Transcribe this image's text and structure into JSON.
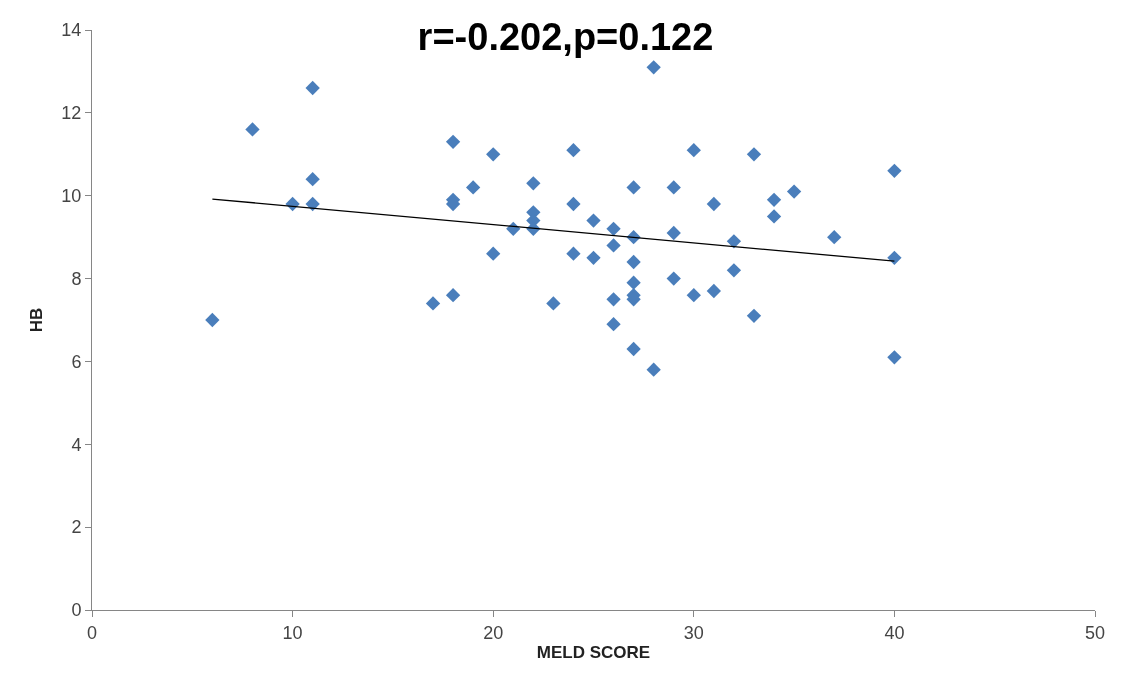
{
  "chart_data": {
    "type": "scatter",
    "title": "r=-0.202,p=0.122",
    "xlabel": "MELD SCORE",
    "ylabel": "HB",
    "marker": "diamond",
    "grid": false,
    "xlim": [
      0,
      50
    ],
    "xticks": [
      0,
      10,
      20,
      30,
      40,
      50
    ],
    "ylim": [
      0,
      14
    ],
    "yticks": [
      0,
      2,
      4,
      6,
      8,
      10,
      12,
      14
    ],
    "series": [
      {
        "color": "#4a7ebb",
        "x": [
          6,
          8,
          10,
          11,
          11,
          11,
          17,
          18,
          18,
          18,
          18,
          19,
          20,
          20,
          21,
          22,
          22,
          22,
          22,
          23,
          24,
          24,
          24,
          25,
          25,
          26,
          26,
          26,
          26,
          27,
          27,
          27,
          27,
          27,
          27,
          27,
          28,
          28,
          29,
          29,
          29,
          30,
          30,
          31,
          31,
          32,
          32,
          33,
          33,
          34,
          34,
          35,
          37,
          40,
          40,
          40
        ],
        "values": [
          7.0,
          11.6,
          9.8,
          12.6,
          10.4,
          9.8,
          7.4,
          11.3,
          9.9,
          9.8,
          7.6,
          10.2,
          11.0,
          8.6,
          9.2,
          10.3,
          9.6,
          9.4,
          9.2,
          7.4,
          11.1,
          9.8,
          8.6,
          9.4,
          8.5,
          9.2,
          8.8,
          7.5,
          6.9,
          10.2,
          9.0,
          8.4,
          7.9,
          7.6,
          7.5,
          6.3,
          13.1,
          5.8,
          10.2,
          9.1,
          8.0,
          11.1,
          7.6,
          9.8,
          7.7,
          8.9,
          8.2,
          11.0,
          7.1,
          9.9,
          9.5,
          10.1,
          9.0,
          10.6,
          8.5,
          6.1
        ]
      },
      {
        "type": "line",
        "color": "#000000",
        "marker": "none",
        "x": [
          6,
          40
        ],
        "values": [
          9.92,
          8.42
        ]
      }
    ]
  }
}
